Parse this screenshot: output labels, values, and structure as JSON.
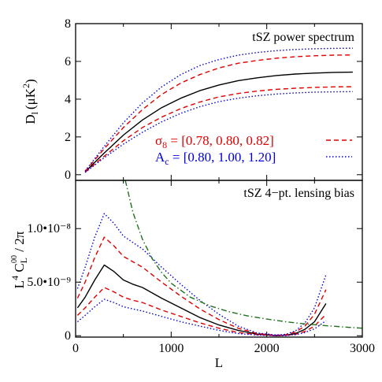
{
  "chart_data": [
    {
      "type": "line",
      "panel": "top",
      "title": "tSZ power spectrum",
      "ylabel": "D",
      "ylabel_sub": "l",
      "ylabel_unit": "(μK",
      "ylabel_unit_sup": "2",
      "ylabel_unit_end": ")",
      "xlim": [
        0,
        3000
      ],
      "ylim": [
        -0.3,
        8
      ],
      "yticks": [
        0,
        2,
        4,
        6,
        8
      ],
      "yticklabels": [
        "0",
        "2",
        "4",
        "6",
        "8"
      ],
      "x": [
        100,
        300,
        500,
        700,
        900,
        1100,
        1300,
        1500,
        1700,
        1900,
        2100,
        2300,
        2500,
        2700,
        2900
      ],
      "series": [
        {
          "values": [
            0.15,
            1.15,
            2.1,
            2.9,
            3.55,
            4.05,
            4.45,
            4.75,
            4.98,
            5.13,
            5.25,
            5.33,
            5.38,
            5.42,
            5.43
          ],
          "color": "#000000",
          "dash": "solid"
        },
        {
          "values": [
            0.18,
            1.38,
            2.5,
            3.45,
            4.25,
            4.85,
            5.3,
            5.65,
            5.9,
            6.05,
            6.17,
            6.25,
            6.3,
            6.33,
            6.34
          ],
          "color": "#e00000",
          "dash": "dashed"
        },
        {
          "values": [
            0.13,
            0.98,
            1.8,
            2.5,
            3.05,
            3.5,
            3.85,
            4.12,
            4.3,
            4.43,
            4.52,
            4.58,
            4.62,
            4.65,
            4.66
          ],
          "color": "#e00000",
          "dash": "dashed"
        },
        {
          "values": [
            0.2,
            1.5,
            2.75,
            3.8,
            4.65,
            5.3,
            5.78,
            6.1,
            6.33,
            6.47,
            6.57,
            6.63,
            6.67,
            6.69,
            6.7
          ],
          "color": "#0000e0",
          "dash": "dotted"
        },
        {
          "values": [
            0.12,
            0.9,
            1.62,
            2.25,
            2.8,
            3.25,
            3.6,
            3.87,
            4.05,
            4.18,
            4.27,
            4.33,
            4.37,
            4.39,
            4.4
          ],
          "color": "#0000e0",
          "dash": "dotted"
        }
      ],
      "legend": {
        "placement": "center-right",
        "entries": [
          {
            "symbol": "σ",
            "sub": "8",
            "text": " = [0.78, 0.80, 0.82]",
            "color": "#e00000",
            "dash": "dashed"
          },
          {
            "symbol": "A",
            "sub": "c",
            "text": " = [0.80, 1.00, 1.20]",
            "color": "#0000e0",
            "dash": "dotted"
          }
        ]
      }
    },
    {
      "type": "line",
      "panel": "bottom",
      "title": "tSZ 4−pt. lensing bias",
      "ylabel": "L",
      "ylabel_sup": "4",
      "ylabel_mid": " C",
      "ylabel_sub": "L",
      "ylabel_subsup": "00",
      "ylabel_end": " / 2π",
      "xlabel": "L",
      "xlim": [
        0,
        3000
      ],
      "ylim": [
        -1.3e-10,
        1.45e-08
      ],
      "xticks": [
        0,
        1000,
        2000,
        3000
      ],
      "xticklabels": [
        "0",
        "1000",
        "2000",
        "3000"
      ],
      "yticks": [
        0,
        5e-09,
        1e-08
      ],
      "yticklabels": [
        "0",
        "5.0•10⁻⁹",
        "1.0•10⁻⁸"
      ],
      "series": [
        {
          "x": [
            20,
            100,
            200,
            300,
            400,
            500,
            600,
            700,
            900,
            1100,
            1300,
            1500,
            1700,
            1900,
            2100,
            2200,
            2300,
            2400,
            2500,
            2620
          ],
          "values": [
            2.6e-09,
            3.6e-09,
            5.2e-09,
            6.6e-09,
            6e-09,
            5.2e-09,
            4.8e-09,
            4.5e-09,
            3.5e-09,
            2.6e-09,
            1.7e-09,
            1e-09,
            5e-10,
            1.5e-10,
            0.0,
            5e-11,
            2e-10,
            6e-10,
            1.3e-09,
            3e-09
          ],
          "color": "#000000",
          "dash": "solid"
        },
        {
          "x": [
            20,
            100,
            200,
            300,
            400,
            500,
            600,
            700,
            900,
            1100,
            1300,
            1500,
            1700,
            1900,
            2100,
            2200,
            2300,
            2400,
            2500,
            2620
          ],
          "values": [
            3.5e-09,
            5e-09,
            7.3e-09,
            9.2e-09,
            8.4e-09,
            7.4e-09,
            6.9e-09,
            6.4e-09,
            5e-09,
            3.7e-09,
            2.5e-09,
            1.5e-09,
            7e-10,
            2e-10,
            5e-11,
            1e-10,
            3.5e-10,
            9e-10,
            2e-09,
            4.3e-09
          ],
          "color": "#e00000",
          "dash": "dashed"
        },
        {
          "x": [
            20,
            100,
            200,
            300,
            400,
            500,
            600,
            700,
            900,
            1100,
            1300,
            1500,
            1700,
            1900,
            2100,
            2200,
            2300,
            2400,
            2500,
            2620
          ],
          "values": [
            1.9e-09,
            2.6e-09,
            3.6e-09,
            4.5e-09,
            4.1e-09,
            3.6e-09,
            3.3e-09,
            3.1e-09,
            2.4e-09,
            1.8e-09,
            1.2e-09,
            7e-10,
            3e-10,
            1e-10,
            0.0,
            3e-11,
            1.3e-10,
            4e-10,
            9e-10,
            2e-09
          ],
          "color": "#e00000",
          "dash": "dashed"
        },
        {
          "x": [
            20,
            100,
            200,
            300,
            400,
            500,
            600,
            700,
            900,
            1100,
            1300,
            1500,
            1700,
            1900,
            2100,
            2200,
            2300,
            2400,
            2500,
            2620
          ],
          "values": [
            4.4e-09,
            6.4e-09,
            9.2e-09,
            1.14e-08,
            1.05e-08,
            9.3e-09,
            8.7e-09,
            8.1e-09,
            6.4e-09,
            4.8e-09,
            3.3e-09,
            2e-09,
            9e-10,
            2.5e-10,
            7e-11,
            1.3e-10,
            4.5e-10,
            1.2e-09,
            2.6e-09,
            5.7e-09
          ],
          "color": "#0000e0",
          "dash": "dotted"
        },
        {
          "x": [
            20,
            100,
            200,
            300,
            400,
            500,
            600,
            700,
            900,
            1100,
            1300,
            1500,
            1700,
            1900,
            2100,
            2200,
            2300,
            2400,
            2500,
            2620
          ],
          "values": [
            1.3e-09,
            1.9e-09,
            2.7e-09,
            3.4e-09,
            3.1e-09,
            2.7e-09,
            2.5e-09,
            2.3e-09,
            1.8e-09,
            1.3e-09,
            9e-10,
            5e-10,
            2e-10,
            6e-11,
            0.0,
            2e-11,
            1e-10,
            3e-10,
            6.5e-10,
            1.4e-09
          ],
          "color": "#0000e0",
          "dash": "dotted"
        },
        {
          "x": [
            520,
            600,
            700,
            800,
            900,
            1000,
            1200,
            1400,
            1600,
            1800,
            2000,
            2200,
            2400,
            2600,
            2800,
            3000
          ],
          "values": [
            1.45e-08,
            1.15e-08,
            9e-09,
            7.2e-09,
            5.9e-09,
            4.9e-09,
            3.6e-09,
            2.8e-09,
            2.25e-09,
            1.85e-09,
            1.55e-09,
            1.3e-09,
            1.1e-09,
            9.5e-10,
            8.2e-10,
            7e-10
          ],
          "color": "#207020",
          "dash": "dashdot"
        }
      ]
    }
  ]
}
